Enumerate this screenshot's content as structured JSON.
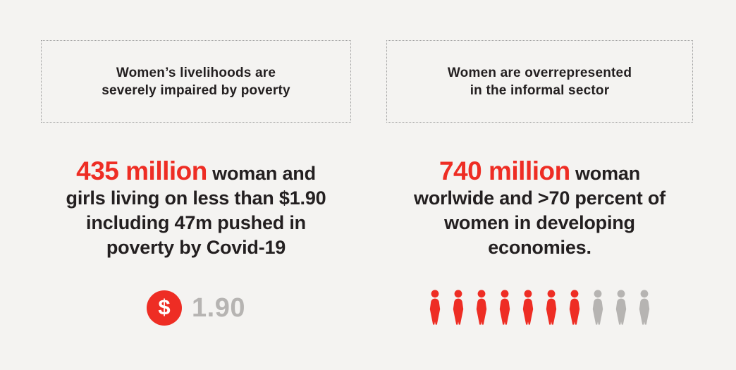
{
  "colors": {
    "background": "#f4f3f1",
    "accent_red": "#ee2d24",
    "dark_text": "#231f20",
    "muted_gray": "#b6b4b2",
    "dotted_border": "#9e9e9e",
    "dollar_symbol_color": "#ffffff"
  },
  "left_panel": {
    "heading_line1": "Women’s livelihoods are",
    "heading_line2": "severely impaired by poverty",
    "stat": {
      "highlight": "435 million",
      "line1_rest": " woman and",
      "line2": "girls living on less than $1.90",
      "line3": "including 47m pushed in",
      "line4": "poverty by Covid-19"
    }
  },
  "right_panel": {
    "heading_line1": "Women are overrepresented",
    "heading_line2": "in the informal sector",
    "stat": {
      "highlight": "740 million",
      "line1_rest": " woman",
      "line2": "worlwide and >70 percent of",
      "line3": "women in developing",
      "line4": "economies."
    }
  },
  "chart_data": [
    {
      "type": "pictograph",
      "panel": "left",
      "title": "Women’s livelihoods are severely impaired by poverty",
      "stat_text": "435 million woman and girls living on less than $1.90 including 47m pushed in poverty by Covid-19",
      "highlight_value": "435 million",
      "icon": "dollar-circle",
      "dollar_symbol": "$",
      "icon_value": "1.90"
    },
    {
      "type": "pictograph",
      "panel": "right",
      "title": "Women are overrepresented in the informal sector",
      "stat_text": "740 million woman worlwide and >70 percent of women in developing economies.",
      "highlight_value": "740 million",
      "icon": "person",
      "icons_total": 10,
      "icons_highlighted": 7,
      "fraction_depicted": 0.7
    }
  ]
}
